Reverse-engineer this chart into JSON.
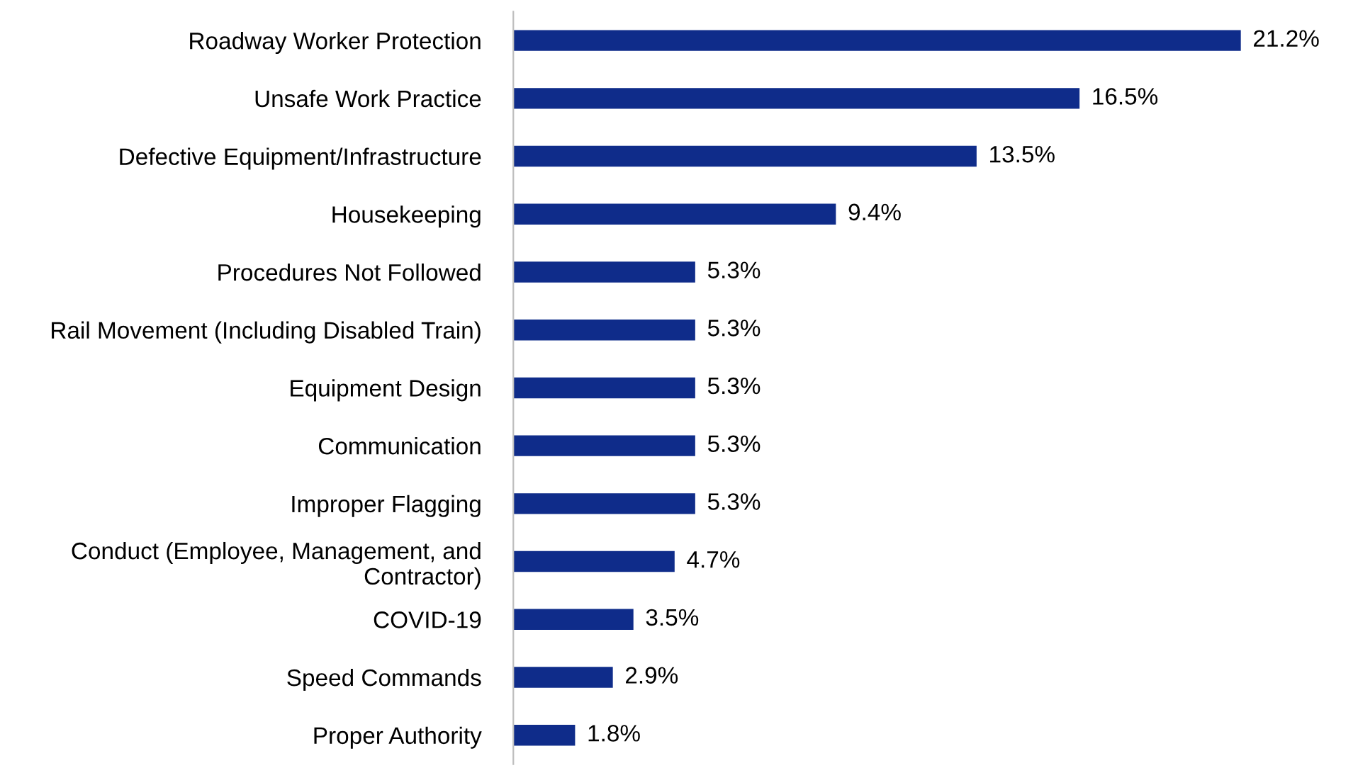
{
  "chart_data": {
    "type": "bar",
    "orientation": "horizontal",
    "categories": [
      "Roadway Worker Protection",
      "Unsafe Work Practice",
      "Defective Equipment/Infrastructure",
      "Housekeeping",
      "Procedures Not Followed",
      "Rail Movement (Including Disabled Train)",
      "Equipment Design",
      "Communication",
      "Improper Flagging",
      "Conduct (Employee, Management, and\nContractor)",
      "COVID-19",
      "Speed Commands",
      "Proper Authority"
    ],
    "values": [
      21.2,
      16.5,
      13.5,
      9.4,
      5.3,
      5.3,
      5.3,
      5.3,
      5.3,
      4.7,
      3.5,
      2.9,
      1.8
    ],
    "value_labels": [
      "21.2%",
      "16.5%",
      "13.5%",
      "9.4%",
      "5.3%",
      "5.3%",
      "5.3%",
      "5.3%",
      "5.3%",
      "4.7%",
      "3.5%",
      "2.9%",
      "1.8%"
    ],
    "color": "#0f2c8a",
    "grid": false,
    "legend": false
  }
}
